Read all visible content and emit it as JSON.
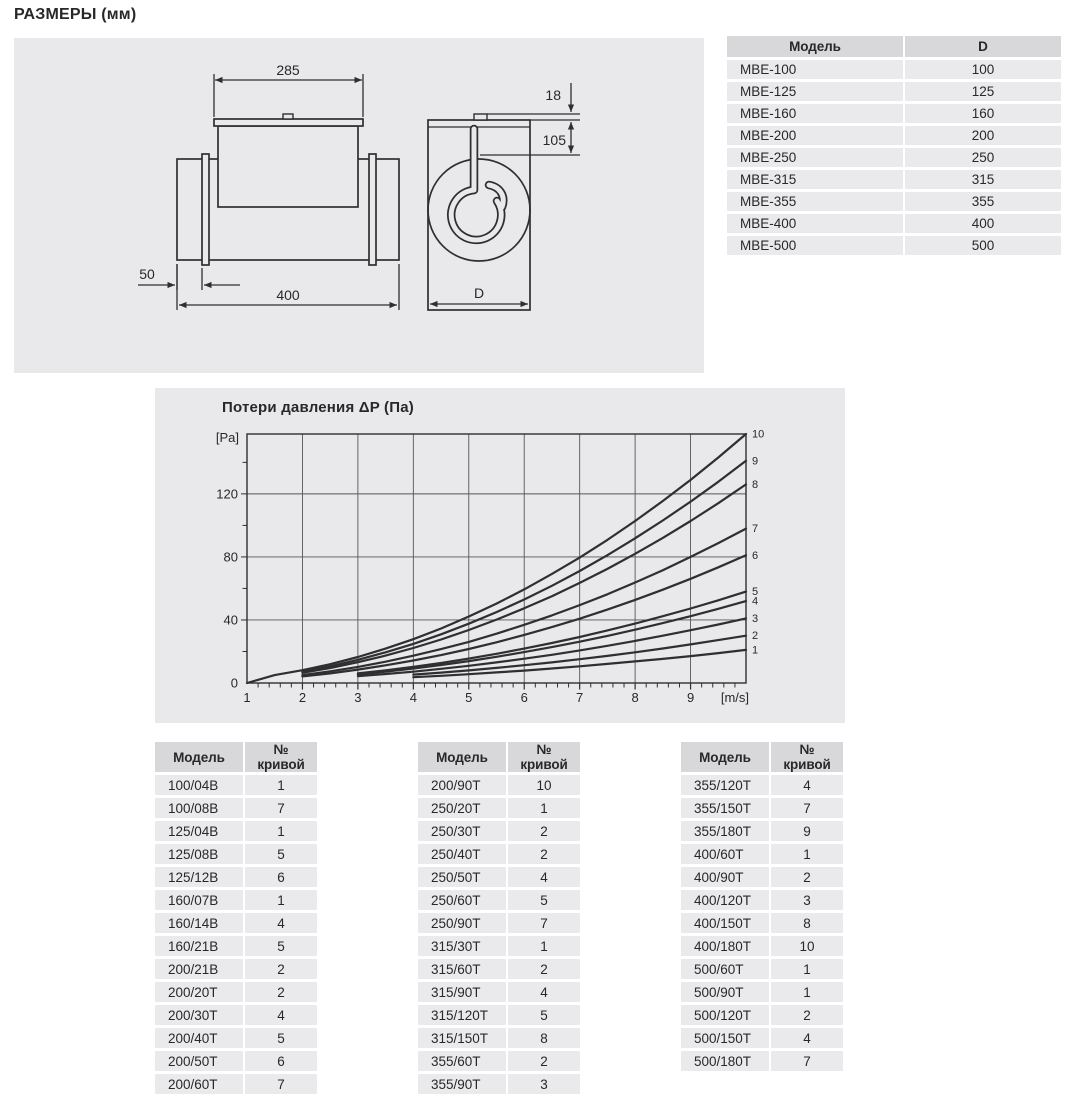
{
  "page_title": "РАЗМЕРЫ (мм)",
  "drawing": {
    "side_view": {
      "top_width": "285",
      "inlet_offset": "50",
      "total_length": "400"
    },
    "front_view": {
      "terminal_height": "18",
      "box_depth": "105",
      "diameter_label": "D"
    }
  },
  "model_d_table": {
    "headers": [
      "Модель",
      "D"
    ],
    "rows": [
      [
        "МВЕ-100",
        "100"
      ],
      [
        "МВЕ-125",
        "125"
      ],
      [
        "МВЕ-160",
        "160"
      ],
      [
        "МВЕ-200",
        "200"
      ],
      [
        "МВЕ-250",
        "250"
      ],
      [
        "МВЕ-315",
        "315"
      ],
      [
        "МВЕ-355",
        "355"
      ],
      [
        "МВЕ-400",
        "400"
      ],
      [
        "МВЕ-500",
        "500"
      ]
    ]
  },
  "chart": {
    "title": "Потери давления ΔP (Па)",
    "y_unit": "[Pa]",
    "x_unit": "[m/s]",
    "x_tick_labels": [
      "1",
      "2",
      "3",
      "4",
      "5",
      "6",
      "7",
      "8",
      "9"
    ],
    "y_tick_labels": [
      "0",
      "40",
      "80",
      "120"
    ]
  },
  "chart_data": {
    "type": "line",
    "title": "Потери давления ΔP (Па)",
    "xlabel": "[m/s]",
    "ylabel": "[Pa]",
    "xlim": [
      1,
      10
    ],
    "ylim": [
      0,
      158
    ],
    "x_gridlines": [
      2,
      3,
      4,
      5,
      6,
      7,
      8,
      9
    ],
    "y_gridlines": [
      40,
      80,
      120
    ],
    "x_minor_step": 0.2,
    "y_minor_step": 20,
    "legend_position": "right-edge-curve-numbers",
    "series": [
      {
        "label": "1",
        "points": [
          [
            4,
            3.7
          ],
          [
            4.5,
            4.6
          ],
          [
            5,
            5.6
          ],
          [
            5.5,
            6.7
          ],
          [
            6,
            7.9
          ],
          [
            6.5,
            9.2
          ],
          [
            7,
            10.6
          ],
          [
            7.5,
            12.1
          ],
          [
            8,
            13.7
          ],
          [
            8.5,
            15.3
          ],
          [
            9,
            17.1
          ],
          [
            9.5,
            19.0
          ],
          [
            10,
            21
          ]
        ]
      },
      {
        "label": "2",
        "points": [
          [
            4,
            5.3
          ],
          [
            4.5,
            6.6
          ],
          [
            5,
            8.0
          ],
          [
            5.5,
            9.6
          ],
          [
            6,
            11.3
          ],
          [
            6.5,
            13.1
          ],
          [
            7,
            15.1
          ],
          [
            7.5,
            17.2
          ],
          [
            8,
            19.5
          ],
          [
            8.5,
            21.9
          ],
          [
            9,
            24.5
          ],
          [
            9.5,
            27.2
          ],
          [
            10,
            30
          ]
        ]
      },
      {
        "label": "3",
        "points": [
          [
            3,
            4.3
          ],
          [
            3.5,
            5.7
          ],
          [
            4,
            7.2
          ],
          [
            4.5,
            9.0
          ],
          [
            5,
            10.9
          ],
          [
            5.5,
            13.1
          ],
          [
            6,
            15.4
          ],
          [
            6.5,
            17.9
          ],
          [
            7,
            20.7
          ],
          [
            7.5,
            23.6
          ],
          [
            8,
            26.7
          ],
          [
            8.5,
            30.0
          ],
          [
            9,
            33.5
          ],
          [
            9.5,
            37.1
          ],
          [
            10,
            41
          ]
        ]
      },
      {
        "label": "4",
        "points": [
          [
            3,
            5.4
          ],
          [
            3.5,
            7.2
          ],
          [
            4,
            9.2
          ],
          [
            4.5,
            11.4
          ],
          [
            5,
            13.9
          ],
          [
            5.5,
            16.6
          ],
          [
            6,
            19.6
          ],
          [
            6.5,
            22.8
          ],
          [
            7,
            26.2
          ],
          [
            7.5,
            29.9
          ],
          [
            8,
            33.8
          ],
          [
            8.5,
            38.0
          ],
          [
            9,
            42.4
          ],
          [
            9.5,
            47.1
          ],
          [
            10,
            52
          ]
        ]
      },
      {
        "label": "5",
        "points": [
          [
            3,
            6.1
          ],
          [
            3.5,
            8.0
          ],
          [
            4,
            10.2
          ],
          [
            4.5,
            12.7
          ],
          [
            5,
            15.5
          ],
          [
            5.5,
            18.5
          ],
          [
            6,
            21.8
          ],
          [
            6.5,
            25.4
          ],
          [
            7,
            29.2
          ],
          [
            7.5,
            33.4
          ],
          [
            8,
            37.7
          ],
          [
            8.5,
            42.4
          ],
          [
            9,
            47.3
          ],
          [
            9.5,
            52.5
          ],
          [
            10,
            58
          ]
        ]
      },
      {
        "label": "6",
        "points": [
          [
            2,
            4.2
          ],
          [
            2.5,
            6.1
          ],
          [
            3,
            8.5
          ],
          [
            3.5,
            11.2
          ],
          [
            4,
            14.3
          ],
          [
            4.5,
            17.7
          ],
          [
            5,
            21.6
          ],
          [
            5.5,
            25.8
          ],
          [
            6,
            30.5
          ],
          [
            6.5,
            35.5
          ],
          [
            7,
            40.8
          ],
          [
            7.5,
            46.6
          ],
          [
            8,
            52.7
          ],
          [
            8.5,
            59.2
          ],
          [
            9,
            66.1
          ],
          [
            9.5,
            73.4
          ],
          [
            10,
            81
          ]
        ]
      },
      {
        "label": "7",
        "points": [
          [
            2,
            5.0
          ],
          [
            2.5,
            7.4
          ],
          [
            3,
            10.2
          ],
          [
            3.5,
            13.5
          ],
          [
            4,
            17.3
          ],
          [
            4.5,
            21.5
          ],
          [
            5,
            26.1
          ],
          [
            5.5,
            31.3
          ],
          [
            6,
            36.9
          ],
          [
            6.5,
            42.9
          ],
          [
            7,
            49.4
          ],
          [
            7.5,
            56.3
          ],
          [
            8,
            63.8
          ],
          [
            8.5,
            71.6
          ],
          [
            9,
            80.0
          ],
          [
            9.5,
            88.8
          ],
          [
            10,
            98
          ]
        ]
      },
      {
        "label": "8",
        "points": [
          [
            2,
            6.5
          ],
          [
            2.5,
            9.5
          ],
          [
            3,
            13.2
          ],
          [
            3.5,
            17.4
          ],
          [
            4,
            22.2
          ],
          [
            4.5,
            27.6
          ],
          [
            5,
            33.6
          ],
          [
            5.5,
            40.2
          ],
          [
            6,
            47.4
          ],
          [
            6.5,
            55.1
          ],
          [
            7,
            63.5
          ],
          [
            7.5,
            72.4
          ],
          [
            8,
            82.0
          ],
          [
            8.5,
            92.1
          ],
          [
            9,
            102.8
          ],
          [
            9.5,
            114.1
          ],
          [
            10,
            126
          ]
        ]
      },
      {
        "label": "9",
        "points": [
          [
            2,
            7.2
          ],
          [
            2.5,
            10.6
          ],
          [
            3,
            14.7
          ],
          [
            3.5,
            19.5
          ],
          [
            4,
            24.8
          ],
          [
            4.5,
            30.9
          ],
          [
            5,
            37.6
          ],
          [
            5.5,
            45.0
          ],
          [
            6,
            53.0
          ],
          [
            6.5,
            61.7
          ],
          [
            7,
            71.1
          ],
          [
            7.5,
            81.1
          ],
          [
            8,
            91.8
          ],
          [
            8.5,
            103.1
          ],
          [
            9,
            115.1
          ],
          [
            9.5,
            127.7
          ],
          [
            10,
            141
          ]
        ]
      },
      {
        "label": "10",
        "points": [
          [
            1,
            0
          ],
          [
            1.5,
            5.0
          ],
          [
            2,
            8.1
          ],
          [
            2.5,
            11.9
          ],
          [
            3,
            16.5
          ],
          [
            3.5,
            21.8
          ],
          [
            4,
            27.8
          ],
          [
            4.5,
            34.6
          ],
          [
            5,
            42.2
          ],
          [
            5.5,
            50.4
          ],
          [
            6,
            59.4
          ],
          [
            6.5,
            69.2
          ],
          [
            7,
            79.6
          ],
          [
            7.5,
            90.8
          ],
          [
            8,
            102.8
          ],
          [
            8.5,
            115.5
          ],
          [
            9,
            128.9
          ],
          [
            9.5,
            143.1
          ],
          [
            10,
            158
          ]
        ]
      }
    ]
  },
  "curve_tables": [
    {
      "headers": [
        "Модель",
        "№ кривой"
      ],
      "rows": [
        [
          "100/04В",
          "1"
        ],
        [
          "100/08В",
          "7"
        ],
        [
          "125/04В",
          "1"
        ],
        [
          "125/08В",
          "5"
        ],
        [
          "125/12В",
          "6"
        ],
        [
          "160/07В",
          "1"
        ],
        [
          "160/14В",
          "4"
        ],
        [
          "160/21В",
          "5"
        ],
        [
          "200/21В",
          "2"
        ],
        [
          "200/20Т",
          "2"
        ],
        [
          "200/30Т",
          "4"
        ],
        [
          "200/40Т",
          "5"
        ],
        [
          "200/50Т",
          "6"
        ],
        [
          "200/60Т",
          "7"
        ]
      ]
    },
    {
      "headers": [
        "Модель",
        "№ кривой"
      ],
      "rows": [
        [
          "200/90Т",
          "10"
        ],
        [
          "250/20Т",
          "1"
        ],
        [
          "250/30Т",
          "2"
        ],
        [
          "250/40Т",
          "2"
        ],
        [
          "250/50Т",
          "4"
        ],
        [
          "250/60Т",
          "5"
        ],
        [
          "250/90Т",
          "7"
        ],
        [
          "315/30Т",
          "1"
        ],
        [
          "315/60Т",
          "2"
        ],
        [
          "315/90Т",
          "4"
        ],
        [
          "315/120Т",
          "5"
        ],
        [
          "315/150Т",
          "8"
        ],
        [
          "355/60Т",
          "2"
        ],
        [
          "355/90Т",
          "3"
        ]
      ]
    },
    {
      "headers": [
        "Модель",
        "№ кривой"
      ],
      "rows": [
        [
          "355/120Т",
          "4"
        ],
        [
          "355/150Т",
          "7"
        ],
        [
          "355/180Т",
          "9"
        ],
        [
          "400/60Т",
          "1"
        ],
        [
          "400/90Т",
          "2"
        ],
        [
          "400/120Т",
          "3"
        ],
        [
          "400/150Т",
          "8"
        ],
        [
          "400/180Т",
          "10"
        ],
        [
          "500/60Т",
          "1"
        ],
        [
          "500/90Т",
          "1"
        ],
        [
          "500/120Т",
          "2"
        ],
        [
          "500/150Т",
          "4"
        ],
        [
          "500/180Т",
          "7"
        ]
      ]
    }
  ],
  "colors": {
    "panel_bg": "#e9e9eb",
    "table_header_bg": "#d8d8db",
    "table_row_bg": "#eaeaec",
    "line": "#2f2f31",
    "grid": "#56565a",
    "text": "#28282a"
  }
}
